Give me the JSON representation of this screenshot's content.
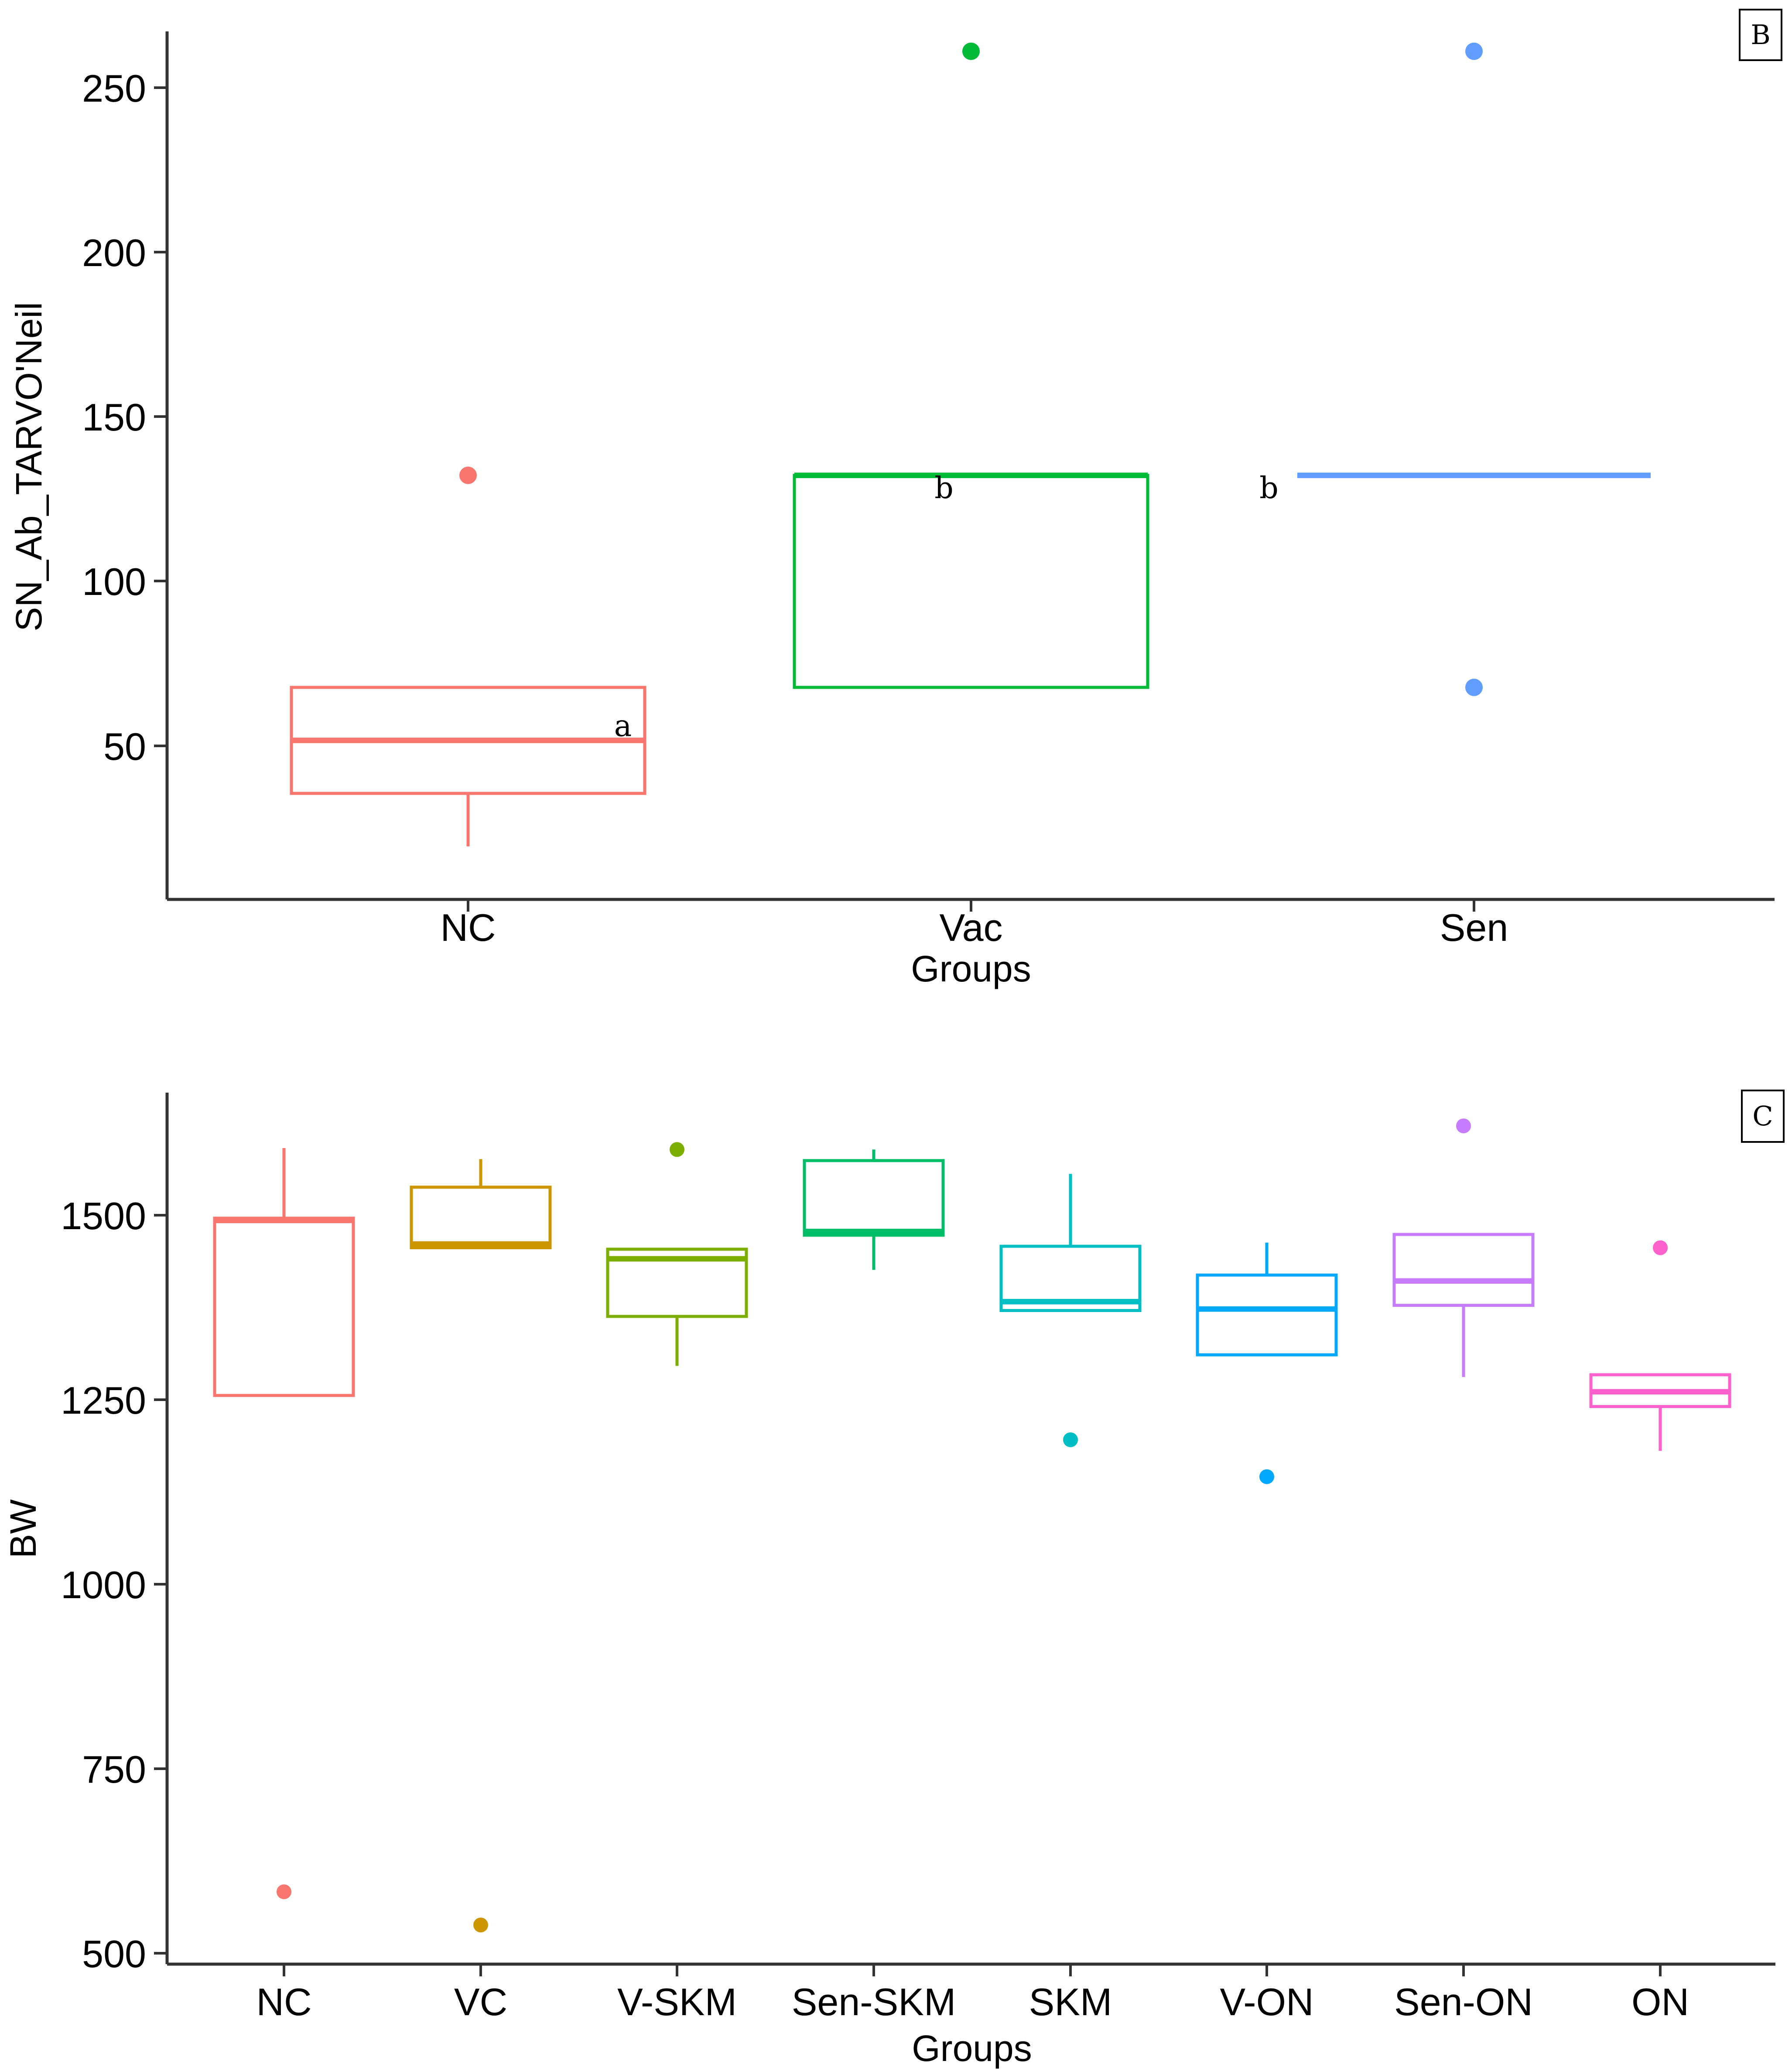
{
  "chart_data": [
    {
      "type": "box",
      "panel_tag": "B",
      "title": "",
      "xlabel": "Groups",
      "ylabel": "SN_Ab_TARVO'Neil",
      "categories": [
        "NC",
        "Vac",
        "Sen"
      ],
      "ylim": [
        0,
        262
      ],
      "yticks": [
        50,
        100,
        150,
        200,
        250
      ],
      "grid": false,
      "legend": "none",
      "series": [
        {
          "name": "NC",
          "color": "#F8766D",
          "min": 16,
          "q1": 32,
          "median": 48,
          "q3": 64,
          "max": 64,
          "outliers": [
            128
          ],
          "letter": "a"
        },
        {
          "name": "Vac",
          "color": "#00BA38",
          "min": 64,
          "q1": 64,
          "median": 128,
          "q3": 128,
          "max": 128,
          "outliers": [
            256
          ],
          "letter": "b"
        },
        {
          "name": "Sen",
          "color": "#619CFF",
          "min": 128,
          "q1": 128,
          "median": 128,
          "q3": 128,
          "max": 128,
          "outliers": [
            256,
            64
          ],
          "letter": "b"
        }
      ]
    },
    {
      "type": "box",
      "panel_tag": "C",
      "title": "",
      "xlabel": "Groups",
      "ylabel": "BW",
      "categories": [
        "NC",
        "VC",
        "V-SKM",
        "Sen-SKM",
        "SKM",
        "V-ON",
        "Sen-ON",
        "ON"
      ],
      "ylim": [
        485,
        1665
      ],
      "yticks": [
        500,
        750,
        1000,
        1250,
        1500
      ],
      "grid": false,
      "legend": "none",
      "series": [
        {
          "name": "NC",
          "color": "#F8766D",
          "min": 1255,
          "q1": 1255,
          "median": 1492,
          "q3": 1495,
          "max": 1590,
          "outliers": [
            583
          ]
        },
        {
          "name": "VC",
          "color": "#CD9600",
          "min": 1455,
          "q1": 1455,
          "median": 1460,
          "q3": 1537,
          "max": 1575,
          "outliers": [
            538
          ]
        },
        {
          "name": "V-SKM",
          "color": "#7CAE00",
          "min": 1295,
          "q1": 1362,
          "median": 1440,
          "q3": 1453,
          "max": 1453,
          "outliers": [
            1588
          ]
        },
        {
          "name": "Sen-SKM",
          "color": "#00BE67",
          "min": 1425,
          "q1": 1472,
          "median": 1477,
          "q3": 1573,
          "max": 1588,
          "outliers": []
        },
        {
          "name": "SKM",
          "color": "#00BFC4",
          "min": 1370,
          "q1": 1370,
          "median": 1382,
          "q3": 1457,
          "max": 1555,
          "outliers": [
            1195
          ]
        },
        {
          "name": "V-ON",
          "color": "#00A9FF",
          "min": 1310,
          "q1": 1310,
          "median": 1372,
          "q3": 1418,
          "max": 1462,
          "outliers": [
            1145
          ]
        },
        {
          "name": "Sen-ON",
          "color": "#C77CFF",
          "min": 1280,
          "q1": 1377,
          "median": 1410,
          "q3": 1473,
          "max": 1473,
          "outliers": [
            1620
          ]
        },
        {
          "name": "ON",
          "color": "#FF61CC",
          "min": 1180,
          "q1": 1240,
          "median": 1260,
          "q3": 1283,
          "max": 1283,
          "outliers": [
            1455
          ]
        }
      ]
    }
  ]
}
